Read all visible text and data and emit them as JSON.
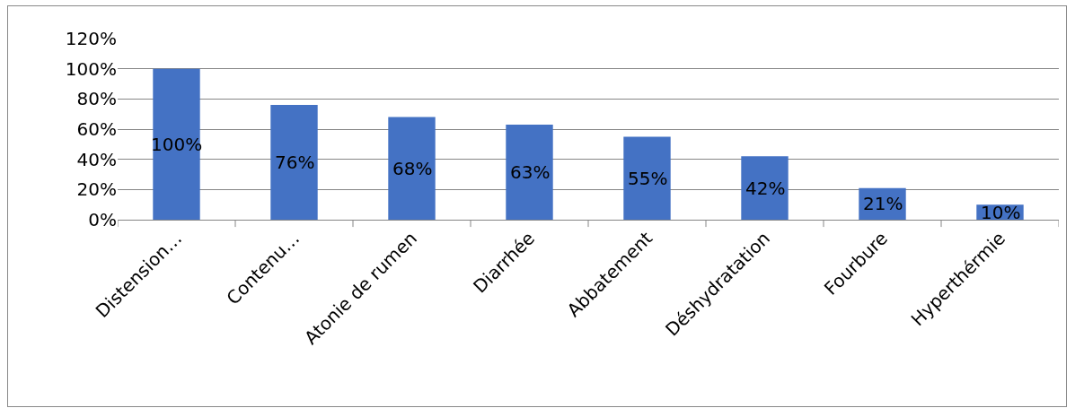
{
  "chart_data": {
    "type": "bar",
    "categories": [
      "Distension…",
      "Contenu…",
      "Atonie de rumen",
      "Diarrhée",
      "Abbatement",
      "Déshydratation",
      "Fourbure",
      "Hyperthérmie"
    ],
    "values": [
      100,
      76,
      68,
      63,
      55,
      42,
      21,
      10
    ],
    "value_labels": [
      "100%",
      "76%",
      "68%",
      "63%",
      "55%",
      "42%",
      "21%",
      "10%"
    ],
    "color": "#4472c4",
    "ylim": [
      0,
      120
    ],
    "yticks": [
      {
        "value": 0,
        "label": "0%"
      },
      {
        "value": 20,
        "label": "20%"
      },
      {
        "value": 40,
        "label": "40%"
      },
      {
        "value": 60,
        "label": "60%"
      },
      {
        "value": 80,
        "label": "80%"
      },
      {
        "value": 100,
        "label": "100%"
      },
      {
        "value": 120,
        "label": "120%"
      }
    ],
    "grid": true
  }
}
